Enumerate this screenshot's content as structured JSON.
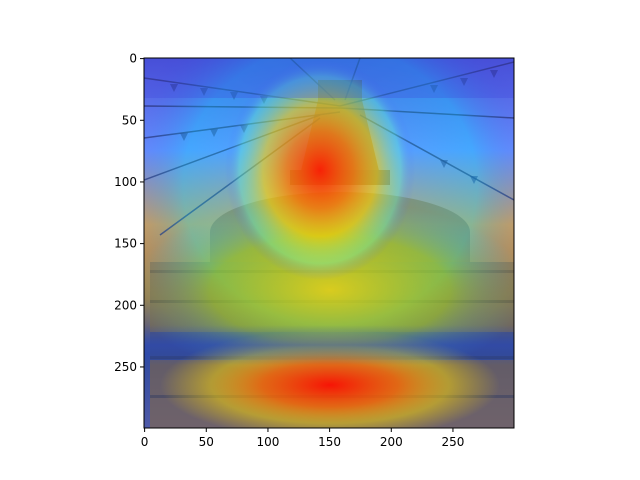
{
  "figure": {
    "image_description_hidden": "",
    "image_axes": {
      "x_ticks": [
        0,
        50,
        100,
        150,
        200,
        250
      ],
      "y_ticks": [
        0,
        50,
        100,
        150,
        200,
        250
      ],
      "x_range": [
        0,
        299
      ],
      "y_range": [
        0,
        299
      ]
    },
    "colors": {
      "heat_low": "#3b3bd6",
      "heat_mid": "#ffd800",
      "heat_high": "#ff1e00",
      "sky_tint": "#7e8cff"
    }
  }
}
